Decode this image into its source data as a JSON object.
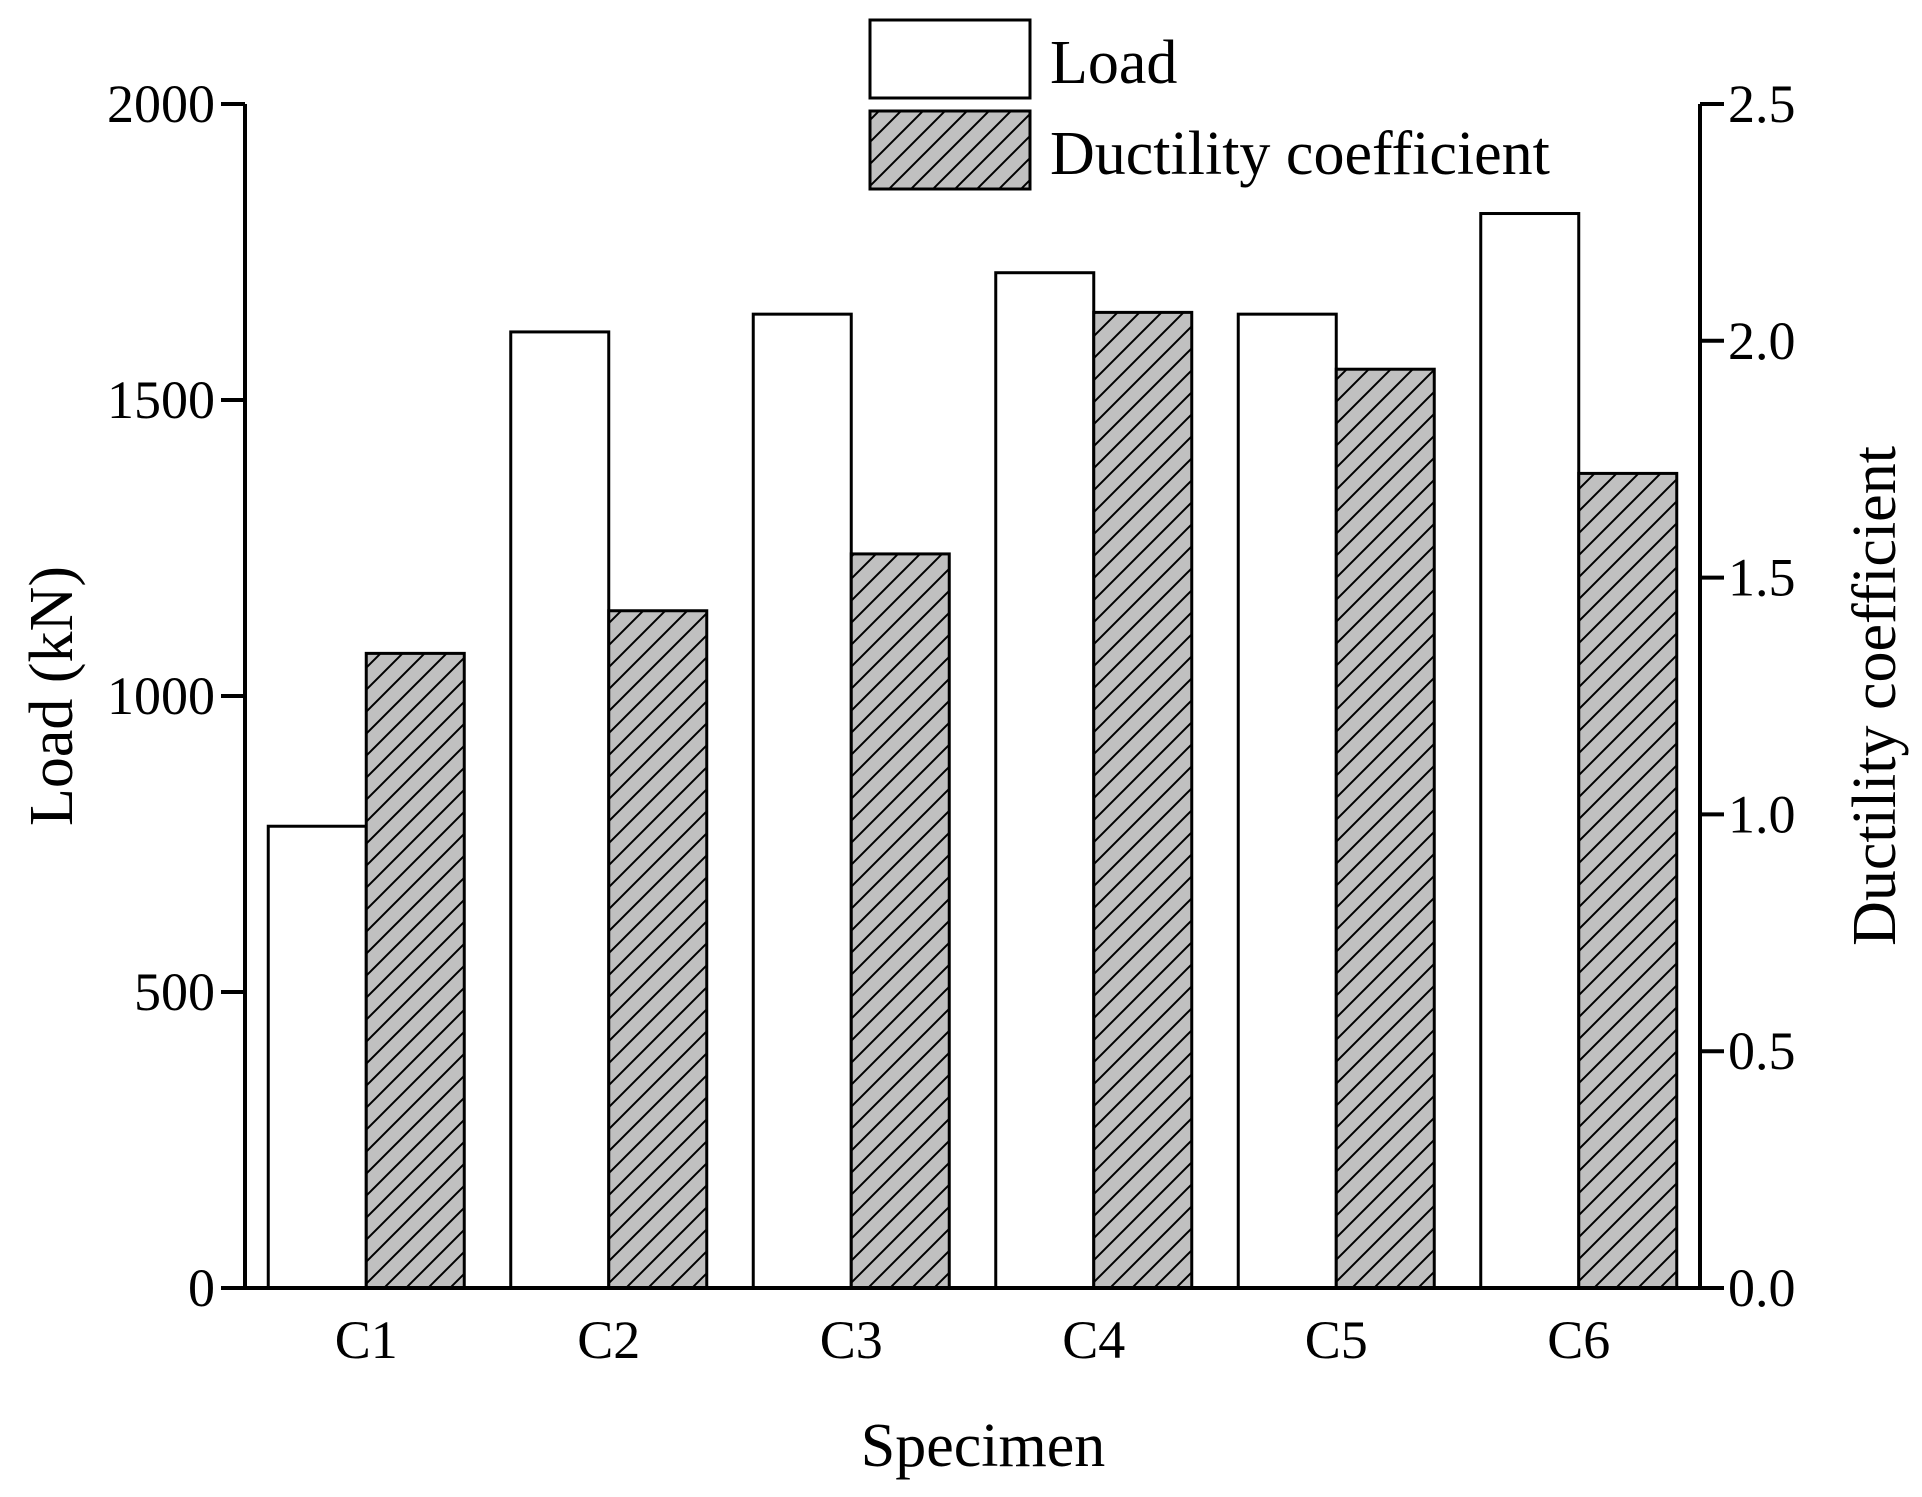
{
  "chart_data": {
    "type": "bar",
    "title": "",
    "xlabel": "Specimen",
    "ylabel": "Load (kN)",
    "y2label": "Ductility coefficient",
    "categories": [
      "C1",
      "C2",
      "C3",
      "C4",
      "C5",
      "C6"
    ],
    "series": [
      {
        "name": "Load",
        "axis": "left",
        "fill": "#ffffff",
        "pattern": "none",
        "values": [
          780,
          1615,
          1645,
          1715,
          1645,
          1815
        ]
      },
      {
        "name": "Ductility coefficient",
        "axis": "right",
        "fill": "#c0c0c0",
        "pattern": "diagonal-hatch",
        "values": [
          1.34,
          1.43,
          1.55,
          2.06,
          1.94,
          1.72
        ]
      }
    ],
    "ylim": [
      0,
      2000
    ],
    "yticks": [
      "0",
      "500",
      "1000",
      "1500",
      "2000"
    ],
    "y2lim": [
      0,
      2.5
    ],
    "y2ticks": [
      "0.0",
      "0.5",
      "1.0",
      "1.5",
      "2.0",
      "2.5"
    ],
    "grid": false,
    "legend_position": "top-center",
    "colors": {
      "axis": "#000000",
      "hatch_fill": "#c0c0c0",
      "outline": "#000000"
    }
  }
}
